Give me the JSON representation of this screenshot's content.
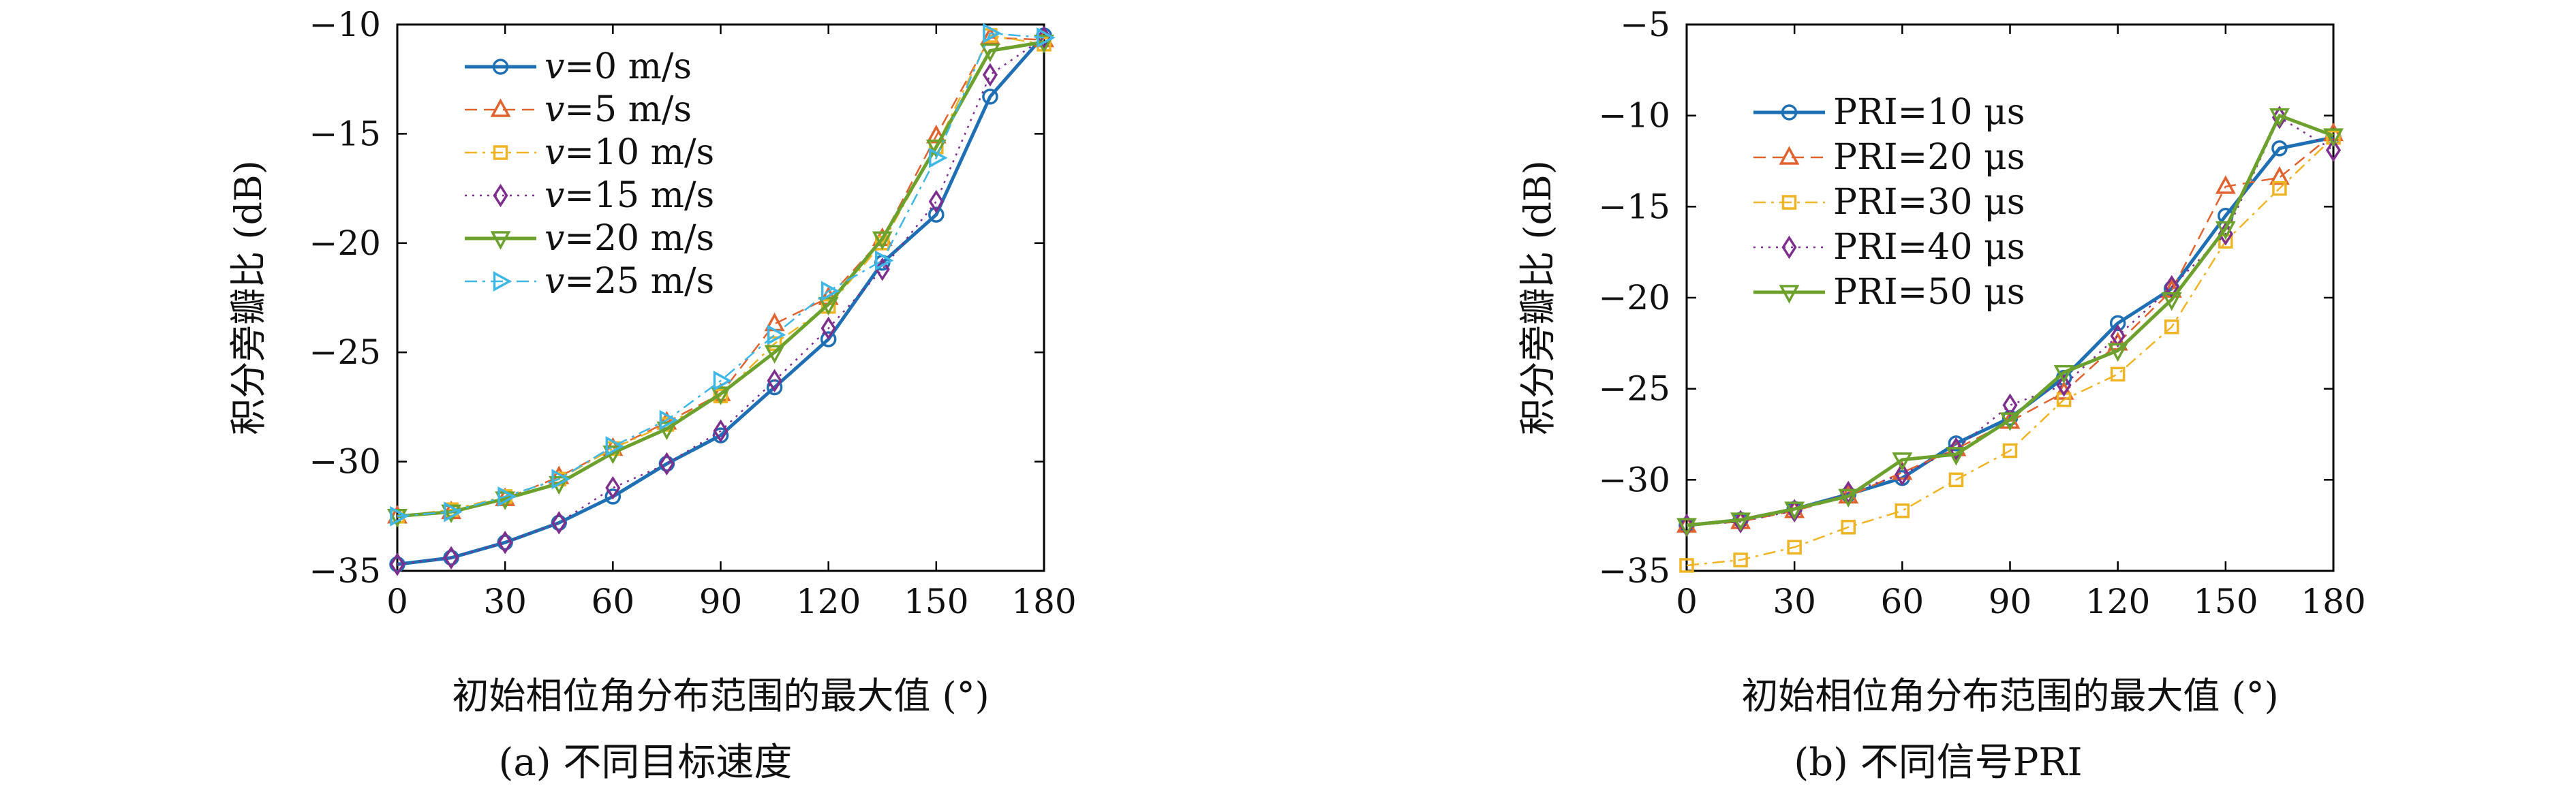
{
  "figure": {
    "panels": [
      {
        "caption": "(a) 不同目标速度",
        "legend_position": "top-left"
      },
      {
        "caption": "(b) 不同信号PRI",
        "legend_position": "top-left"
      }
    ]
  },
  "chart_data": [
    {
      "type": "line",
      "xlabel": "初始相位角分布范围的最大值 (°)",
      "ylabel": "积分旁瓣比 (dB)",
      "xlim": [
        0,
        180
      ],
      "ylim": [
        -35,
        -10
      ],
      "xticks": [
        0,
        30,
        60,
        90,
        120,
        150,
        180
      ],
      "yticks": [
        -35,
        -30,
        -25,
        -20,
        -15,
        -10
      ],
      "x": [
        0,
        15,
        30,
        45,
        60,
        75,
        90,
        105,
        120,
        135,
        150,
        165,
        180
      ],
      "grid": false,
      "legend_position": "top-left",
      "series": [
        {
          "name": "v=0 m/s",
          "prefix": "v",
          "suffix": "=0 m/s",
          "color": "#1f6fb4",
          "marker": "circle",
          "dash": "",
          "width": 5,
          "values": [
            -34.7,
            -34.4,
            -33.7,
            -32.8,
            -31.6,
            -30.1,
            -28.8,
            -26.6,
            -24.4,
            -20.9,
            -18.7,
            -13.3,
            -10.5
          ]
        },
        {
          "name": "v=5 m/s",
          "prefix": "v",
          "suffix": "=5 m/s",
          "color": "#e0622f",
          "marker": "triangle-up",
          "dash": "18,10",
          "width": 2.5,
          "values": [
            -32.5,
            -32.3,
            -31.7,
            -30.7,
            -29.4,
            -28.2,
            -26.9,
            -23.7,
            -22.5,
            -19.8,
            -15.1,
            -10.6,
            -10.7
          ]
        },
        {
          "name": "v=10 m/s",
          "prefix": "v",
          "suffix": "=10 m/s",
          "color": "#eeb424",
          "marker": "square",
          "dash": "18,8,4,8",
          "width": 2.5,
          "values": [
            -32.5,
            -32.2,
            -31.6,
            -30.8,
            -29.4,
            -28.3,
            -27.0,
            -24.6,
            -22.9,
            -20.0,
            -15.6,
            -10.5,
            -10.9
          ]
        },
        {
          "name": "v=15 m/s",
          "prefix": "v",
          "suffix": "=15 m/s",
          "color": "#7e2f8e",
          "marker": "diamond",
          "dash": "3,8",
          "width": 2.5,
          "values": [
            -34.7,
            -34.4,
            -33.7,
            -32.8,
            -31.2,
            -30.1,
            -28.6,
            -26.3,
            -23.9,
            -21.2,
            -18.1,
            -12.3,
            -10.6
          ]
        },
        {
          "name": "v=20 m/s",
          "prefix": "v",
          "suffix": "=20 m/s",
          "color": "#6ca12e",
          "marker": "triangle-down",
          "dash": "",
          "width": 5,
          "values": [
            -32.5,
            -32.3,
            -31.7,
            -31.0,
            -29.6,
            -28.5,
            -26.9,
            -25.0,
            -22.8,
            -19.8,
            -15.6,
            -11.2,
            -10.8
          ]
        },
        {
          "name": "v=25 m/s",
          "prefix": "v",
          "suffix": "=25 m/s",
          "color": "#3fb7e6",
          "marker": "triangle-right",
          "dash": "18,8,4,8",
          "width": 2.5,
          "values": [
            -32.5,
            -32.3,
            -31.6,
            -30.8,
            -29.3,
            -28.1,
            -26.3,
            -24.2,
            -22.2,
            -20.8,
            -16.1,
            -10.4,
            -10.6
          ]
        }
      ]
    },
    {
      "type": "line",
      "xlabel": "初始相位角分布范围的最大值 (°)",
      "ylabel": "积分旁瓣比 (dB)",
      "xlim": [
        0,
        180
      ],
      "ylim": [
        -35,
        -5
      ],
      "xticks": [
        0,
        30,
        60,
        90,
        120,
        150,
        180
      ],
      "yticks": [
        -35,
        -30,
        -25,
        -20,
        -15,
        -10,
        -5
      ],
      "x": [
        0,
        15,
        30,
        45,
        60,
        75,
        90,
        105,
        120,
        135,
        150,
        165,
        180
      ],
      "grid": false,
      "legend_position": "top-left",
      "series": [
        {
          "name": "PRI=10 μs",
          "prefix": "",
          "suffix": "PRI=10 μs",
          "color": "#1f6fb4",
          "marker": "circle",
          "dash": "",
          "width": 5,
          "values": [
            -32.5,
            -32.2,
            -31.6,
            -30.8,
            -29.9,
            -28.0,
            -26.6,
            -24.4,
            -21.4,
            -19.5,
            -15.5,
            -11.8,
            -11.2
          ]
        },
        {
          "name": "PRI=20 μs",
          "prefix": "",
          "suffix": "PRI=20 μs",
          "color": "#e0622f",
          "marker": "triangle-up",
          "dash": "18,10",
          "width": 2.5,
          "values": [
            -32.5,
            -32.3,
            -31.7,
            -30.9,
            -29.6,
            -28.3,
            -26.8,
            -25.2,
            -22.5,
            -19.6,
            -13.9,
            -13.4,
            -11.0
          ]
        },
        {
          "name": "PRI=30 μs",
          "prefix": "",
          "suffix": "PRI=30 μs",
          "color": "#eeb424",
          "marker": "square",
          "dash": "18,8,4,8",
          "width": 2.5,
          "values": [
            -34.7,
            -34.4,
            -33.7,
            -32.6,
            -31.7,
            -30.0,
            -28.4,
            -25.6,
            -24.2,
            -21.6,
            -16.9,
            -14.0,
            -11.2
          ]
        },
        {
          "name": "PRI=40 μs",
          "prefix": "",
          "suffix": "PRI=40 μs",
          "color": "#7e2f8e",
          "marker": "diamond",
          "dash": "3,8",
          "width": 2.5,
          "values": [
            -32.5,
            -32.3,
            -31.7,
            -30.7,
            -29.7,
            -28.3,
            -25.9,
            -24.8,
            -22.1,
            -19.4,
            -16.5,
            -10.1,
            -11.9
          ]
        },
        {
          "name": "PRI=50 μs",
          "prefix": "",
          "suffix": "PRI=50 μs",
          "color": "#6ca12e",
          "marker": "triangle-down",
          "dash": "",
          "width": 5,
          "values": [
            -32.5,
            -32.2,
            -31.6,
            -30.9,
            -28.9,
            -28.6,
            -26.7,
            -24.1,
            -22.9,
            -20.1,
            -16.2,
            -10.0,
            -11.1
          ]
        }
      ]
    }
  ]
}
